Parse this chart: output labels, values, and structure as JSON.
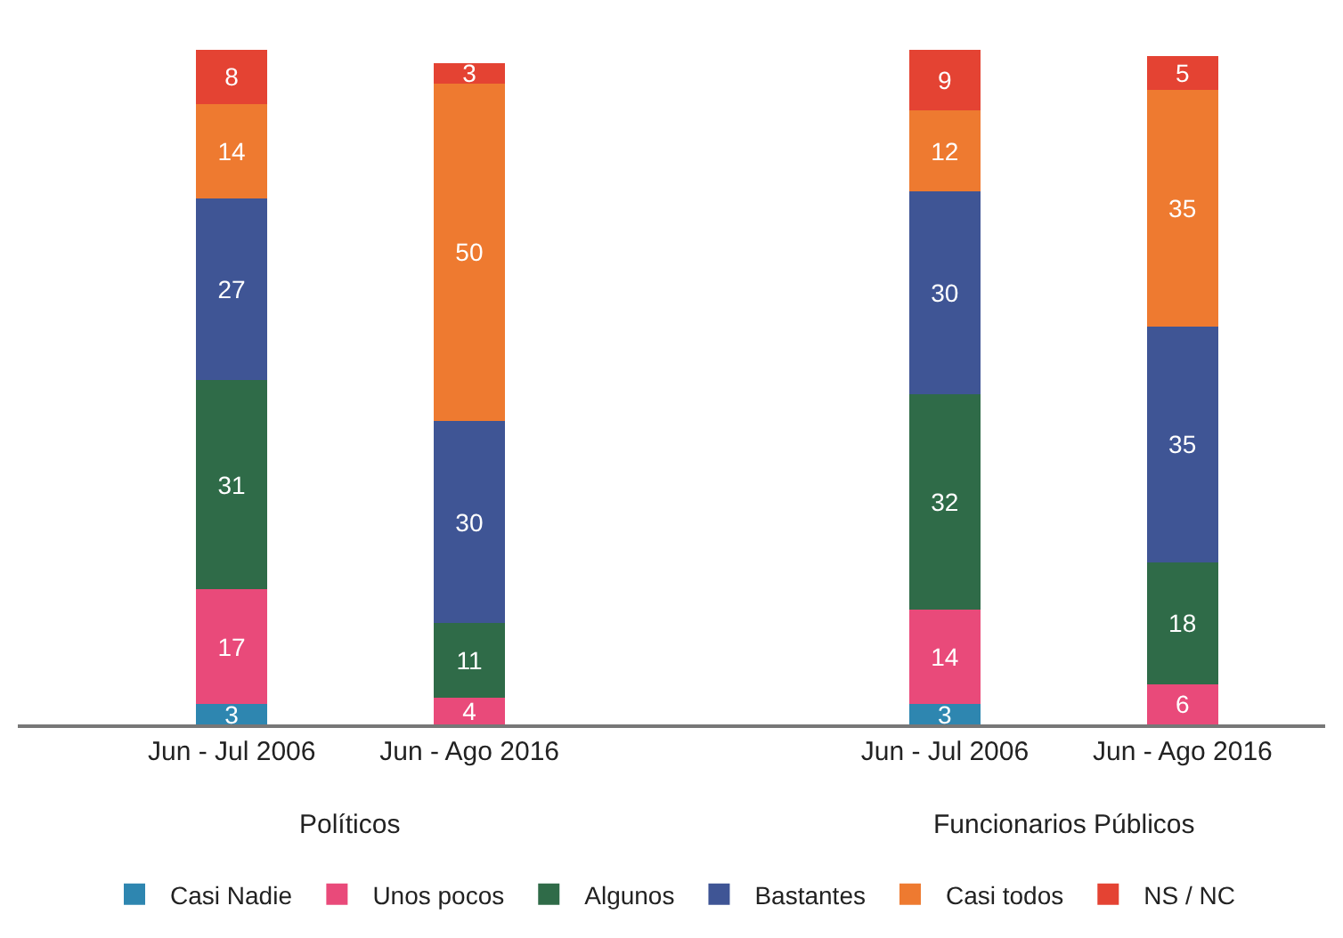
{
  "chart_data": {
    "type": "bar",
    "stacked": true,
    "data_labels": true,
    "legend": "bottom",
    "categories": [
      "Jun - Jul 2006",
      "Jun - Ago 2016",
      "Jun - Jul 2006",
      "Jun - Ago 2016"
    ],
    "annotations": [
      "Políticos",
      "Funcionarios Públicos"
    ],
    "series": [
      {
        "name": "Casi Nadie",
        "color": "#2e86b0",
        "values": [
          3,
          null,
          3,
          null
        ]
      },
      {
        "name": "Unos pocos",
        "color": "#e94a7a",
        "values": [
          17,
          4,
          14,
          6
        ]
      },
      {
        "name": "Algunos",
        "color": "#2f6b48",
        "values": [
          31,
          11,
          32,
          18
        ]
      },
      {
        "name": "Bastantes",
        "color": "#3f5595",
        "values": [
          27,
          30,
          30,
          35
        ]
      },
      {
        "name": "Casi todos",
        "color": "#ee7a30",
        "values": [
          14,
          50,
          12,
          35
        ]
      },
      {
        "name": "NS / NC",
        "color": "#e44333",
        "values": [
          8,
          3,
          9,
          5
        ]
      }
    ]
  }
}
